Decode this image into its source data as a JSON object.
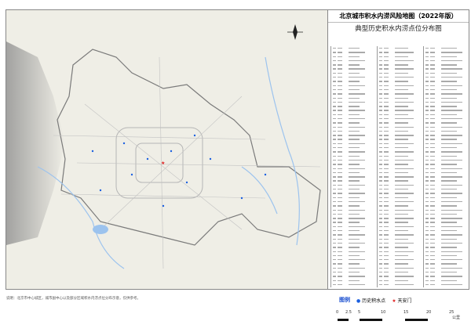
{
  "title": "北京城市积水内涝风险地图（2022年版）",
  "subtitle": "典型历史积水内涝点位分布图",
  "note": "说明：北京市中心城区，城市副中心以及部分区域积水内涝点位分布示意，仅供参考。",
  "legend": {
    "title": "图例",
    "items": [
      {
        "label": "历史积水点",
        "symbol": "dot",
        "color": "#1a5fe0"
      },
      {
        "label": "天安门",
        "symbol": "star",
        "color": "#e02020"
      }
    ]
  },
  "scale": {
    "ticks": [
      "0",
      "2.5",
      "5",
      "10",
      "15",
      "20",
      "25"
    ],
    "unit": "公里"
  },
  "colors": {
    "land": "#efeee6",
    "hills": "#a9a9a9",
    "water": "#9cc3ee",
    "boundary": "#7a7a7a",
    "roads": "#b5b5b5",
    "point": "#1a5fe0"
  }
}
